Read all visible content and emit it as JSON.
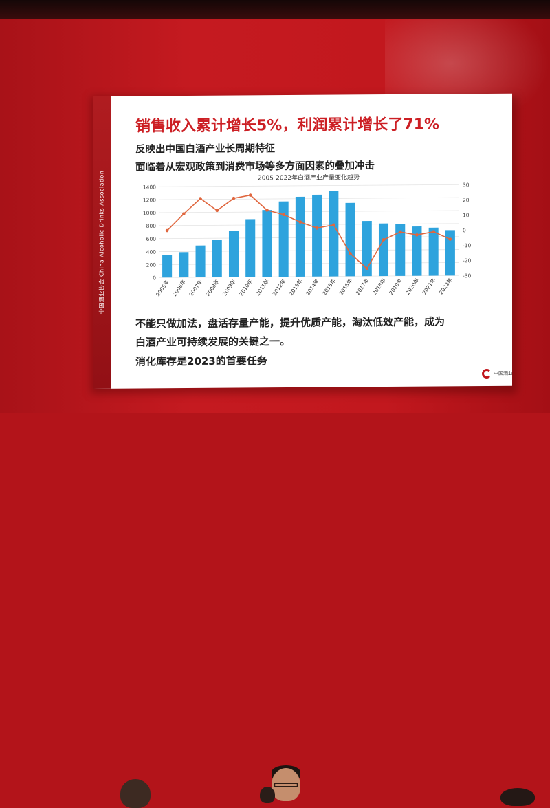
{
  "slide": {
    "headline": "销售收入累计增长5%，利润累计增长了71%",
    "subtitle_1": "反映出中国白酒产业长周期特征",
    "subtitle_2": "面临着从宏观政策到消费市场等多方面因素的叠加冲击",
    "body_line_1": "不能只做加法，盘活存量产能，提升优质产能，淘汰低效产能，成为",
    "body_line_2": "白酒产业可持续发展的关键之一。",
    "body_line_3": "消化库存是2023的首要任务",
    "side_band_text": "中国酒业协会  China Alcoholic Drinks Association",
    "logo_text": "中国酒业",
    "colors": {
      "headline": "#cc1f24",
      "bar": "#2ea3dd",
      "line": "#e0673f",
      "brand_red": "#b01c20"
    }
  },
  "chart_data": {
    "type": "bar",
    "title": "2005-2022年白酒产业产量变化趋势",
    "categories": [
      "2005年",
      "2006年",
      "2007年",
      "2008年",
      "2009年",
      "2010年",
      "2011年",
      "2012年",
      "2013年",
      "2014年",
      "2015年",
      "2016年",
      "2017年",
      "2018年",
      "2019年",
      "2020年",
      "2021年",
      "2022年"
    ],
    "series": [
      {
        "type": "bar",
        "axis": "left",
        "values": [
          350,
          390,
          490,
          570,
          710,
          890,
          1030,
          1160,
          1230,
          1260,
          1320,
          1130,
          850,
          810,
          800,
          760,
          740,
          700
        ]
      },
      {
        "type": "line",
        "axis": "right",
        "values": [
          1,
          12,
          22,
          14,
          22,
          24,
          14,
          11,
          6,
          2,
          4,
          -15,
          -25,
          -6,
          -1,
          -3,
          -1,
          -6
        ]
      }
    ],
    "ylim": [
      0,
      1400
    ],
    "y2lim": [
      -30,
      30
    ],
    "yticks": [
      0,
      200,
      400,
      600,
      800,
      1000,
      1200,
      1400
    ],
    "y2ticks": [
      -30,
      -20,
      -10,
      0,
      10,
      20,
      30
    ],
    "grid": true
  }
}
